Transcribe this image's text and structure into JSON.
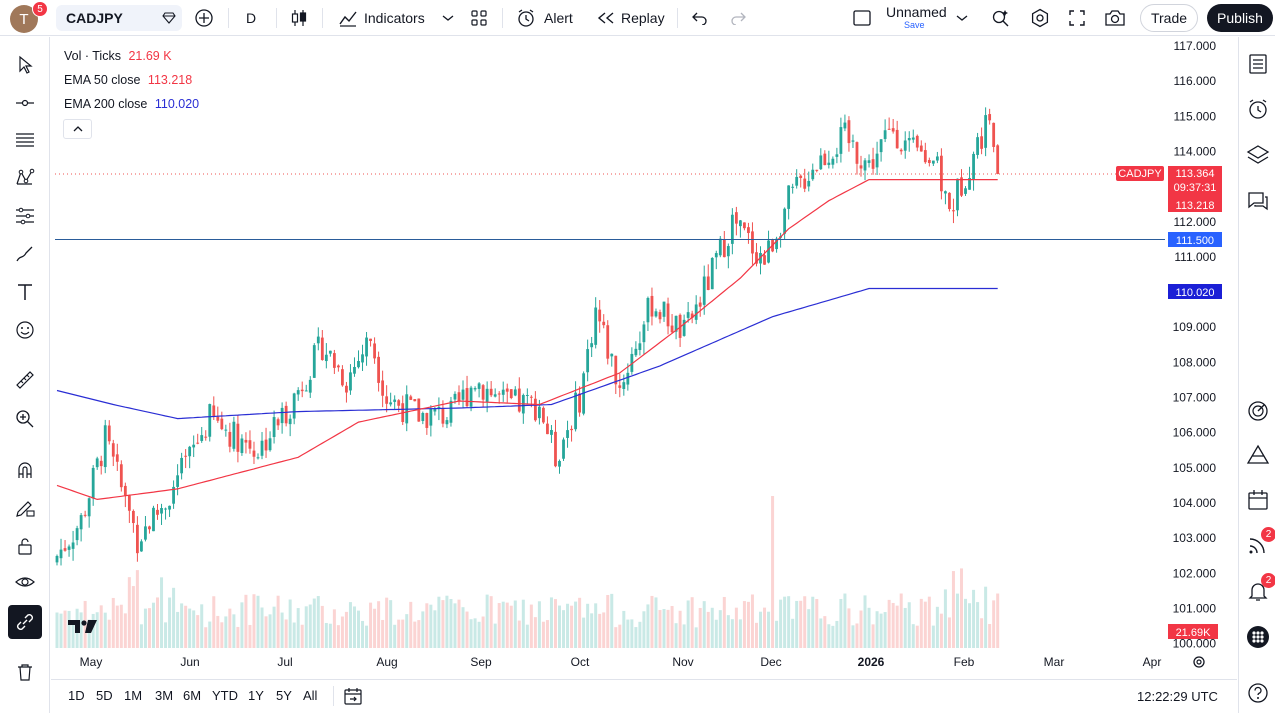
{
  "header": {
    "avatar_letter": "T",
    "avatar_badge": "5",
    "symbol": "CADJPY",
    "interval": "D",
    "indicators_label": "Indicators",
    "alert_label": "Alert",
    "replay_label": "Replay",
    "layout_name": "Unnamed",
    "layout_save": "Save",
    "trade_label": "Trade",
    "publish_label": "Publish"
  },
  "legend": {
    "vol_label": "Vol · Ticks",
    "vol_value": "21.69 K",
    "ema50_label": "EMA 50 close",
    "ema50_value": "113.218",
    "ema200_label": "EMA 200 close",
    "ema200_value": "110.020"
  },
  "price_tags": {
    "symbol": "CADJPY",
    "last_price": "113.364",
    "countdown": "09:37:31",
    "ema50": "113.218",
    "line_level": "111.500",
    "ema200": "110.020",
    "volume": "21.69K"
  },
  "colors": {
    "up": "#26a69a",
    "down": "#ef5350",
    "ema50": "#f23645",
    "ema200": "#2a2ed4",
    "hline": "#2a5c9a",
    "line_tag": "#2962ff"
  },
  "chart_data": {
    "type": "candlestick",
    "y_ticks": [
      "117.000",
      "116.000",
      "115.000",
      "114.000",
      "113.000",
      "112.000",
      "111.000",
      "110.000",
      "109.000",
      "108.000",
      "107.000",
      "106.000",
      "105.000",
      "104.000",
      "103.000",
      "102.000",
      "101.000",
      "100.000"
    ],
    "x_ticks": [
      "May",
      "Jun",
      "Jul",
      "Aug",
      "Sep",
      "Oct",
      "Nov",
      "Dec",
      "2026",
      "Feb",
      "Mar",
      "Apr"
    ],
    "ylim": [
      100,
      117
    ],
    "horizontal_line": 111.5,
    "ema200_anchors": [
      [
        0,
        107.2
      ],
      [
        14,
        106.8
      ],
      [
        30,
        106.4
      ],
      [
        60,
        106.6
      ],
      [
        100,
        106.7
      ],
      [
        123,
        106.8
      ],
      [
        150,
        107.9
      ],
      [
        178,
        109.3
      ],
      [
        202,
        110.1
      ]
    ],
    "ema50_anchors": [
      [
        0,
        104.5
      ],
      [
        10,
        104.1
      ],
      [
        30,
        104.4
      ],
      [
        60,
        105.3
      ],
      [
        75,
        106.3
      ],
      [
        100,
        106.9
      ],
      [
        120,
        106.8
      ],
      [
        140,
        107.7
      ],
      [
        155,
        109.0
      ],
      [
        170,
        110.4
      ],
      [
        182,
        111.8
      ],
      [
        192,
        112.6
      ],
      [
        202,
        113.2
      ]
    ],
    "close_anchors": [
      [
        0,
        102.5
      ],
      [
        6,
        103.5
      ],
      [
        12,
        105.8
      ],
      [
        20,
        103.0
      ],
      [
        28,
        104.2
      ],
      [
        38,
        106.4
      ],
      [
        50,
        105.5
      ],
      [
        58,
        106.8
      ],
      [
        66,
        108.5
      ],
      [
        72,
        107.5
      ],
      [
        78,
        108.7
      ],
      [
        82,
        107.0
      ],
      [
        90,
        106.5
      ],
      [
        98,
        106.5
      ],
      [
        104,
        107.5
      ],
      [
        112,
        106.8
      ],
      [
        120,
        106.8
      ],
      [
        124,
        105.3
      ],
      [
        130,
        107.0
      ],
      [
        134,
        109.5
      ],
      [
        140,
        107.3
      ],
      [
        148,
        109.7
      ],
      [
        156,
        108.8
      ],
      [
        162,
        110.3
      ],
      [
        168,
        112.0
      ],
      [
        176,
        110.9
      ],
      [
        182,
        112.6
      ],
      [
        188,
        113.6
      ],
      [
        196,
        114.4
      ],
      [
        202,
        113.6
      ],
      [
        208,
        114.7
      ],
      [
        212,
        114.0
      ],
      [
        218,
        113.8
      ],
      [
        222,
        112.3
      ],
      [
        226,
        113.4
      ],
      [
        232,
        115.0
      ],
      [
        234,
        113.36
      ]
    ],
    "volume_level": "21.69K"
  },
  "bottom": {
    "ranges": [
      "1D",
      "5D",
      "1M",
      "3M",
      "6M",
      "YTD",
      "1Y",
      "5Y",
      "All"
    ],
    "clock": "12:22:29 UTC"
  },
  "right_badges": {
    "news": "2",
    "alerts": "2"
  }
}
